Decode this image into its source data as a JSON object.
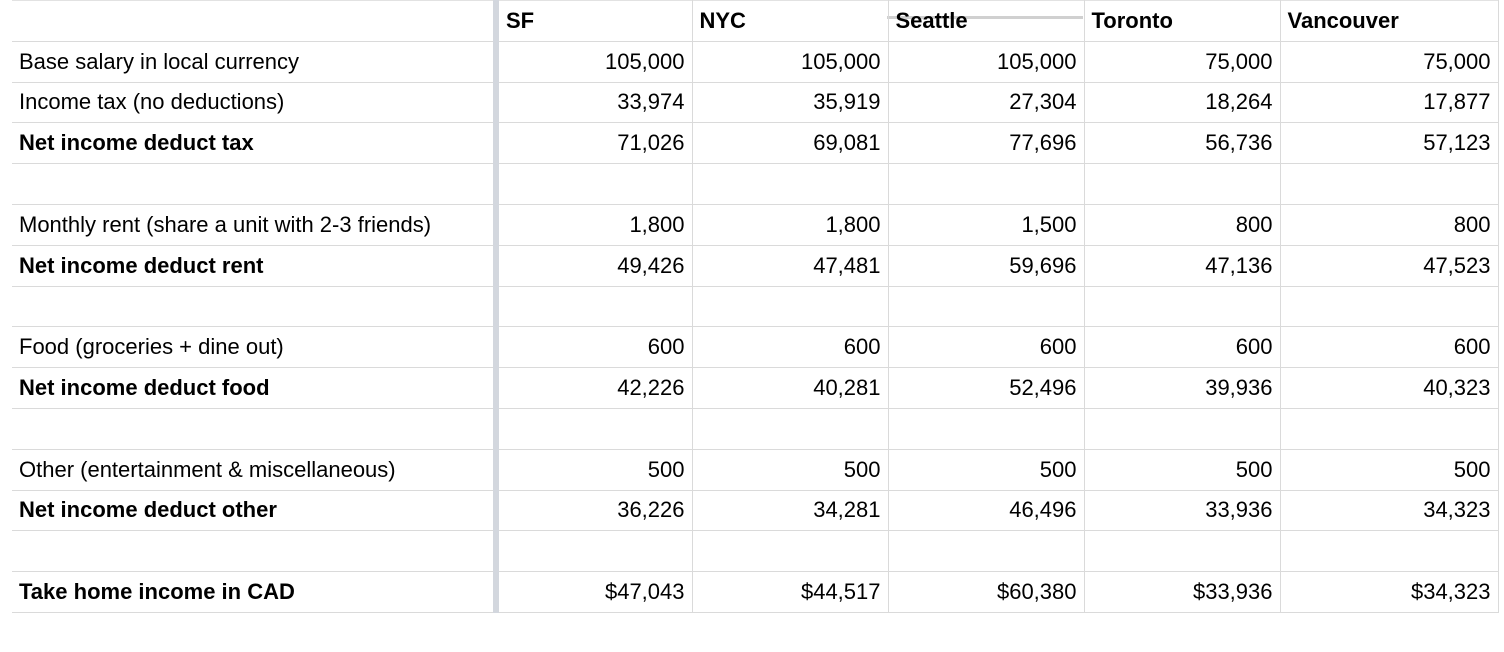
{
  "sheet": {
    "header": [
      "",
      "SF",
      "NYC",
      "Seattle",
      "Toronto",
      "Vancouver"
    ],
    "rows": [
      {
        "label": "Base salary in local currency",
        "bold": false,
        "values": [
          "105,000",
          "105,000",
          "105,000",
          "75,000",
          "75,000"
        ]
      },
      {
        "label": "Income tax (no deductions)",
        "bold": false,
        "values": [
          "33,974",
          "35,919",
          "27,304",
          "18,264",
          "17,877"
        ]
      },
      {
        "label": "Net income deduct tax",
        "bold": true,
        "values": [
          "71,026",
          "69,081",
          "77,696",
          "56,736",
          "57,123"
        ]
      },
      {
        "label": "",
        "bold": false,
        "values": [
          "",
          "",
          "",
          "",
          ""
        ]
      },
      {
        "label": "Monthly rent (share a unit with 2-3 friends)",
        "bold": false,
        "values": [
          "1,800",
          "1,800",
          "1,500",
          "800",
          "800"
        ]
      },
      {
        "label": "Net income deduct rent",
        "bold": true,
        "values": [
          "49,426",
          "47,481",
          "59,696",
          "47,136",
          "47,523"
        ]
      },
      {
        "label": "",
        "bold": false,
        "values": [
          "",
          "",
          "",
          "",
          ""
        ]
      },
      {
        "label": "Food (groceries + dine out)",
        "bold": false,
        "values": [
          "600",
          "600",
          "600",
          "600",
          "600"
        ]
      },
      {
        "label": "Net income deduct food",
        "bold": true,
        "values": [
          "42,226",
          "40,281",
          "52,496",
          "39,936",
          "40,323"
        ]
      },
      {
        "label": "",
        "bold": false,
        "values": [
          "",
          "",
          "",
          "",
          ""
        ]
      },
      {
        "label": "Other (entertainment & miscellaneous)",
        "bold": false,
        "values": [
          "500",
          "500",
          "500",
          "500",
          "500"
        ]
      },
      {
        "label": "Net income deduct other",
        "bold": true,
        "values": [
          "36,226",
          "34,281",
          "46,496",
          "33,936",
          "34,323"
        ]
      },
      {
        "label": "",
        "bold": false,
        "values": [
          "",
          "",
          "",
          "",
          ""
        ]
      },
      {
        "label": "Take home income in CAD",
        "bold": true,
        "values": [
          "$47,043",
          "$44,517",
          "$60,380",
          "$33,936",
          "$34,323"
        ]
      }
    ]
  },
  "colors": {
    "gridline": "#dadada",
    "frozen_divider": "#d3d7de"
  }
}
